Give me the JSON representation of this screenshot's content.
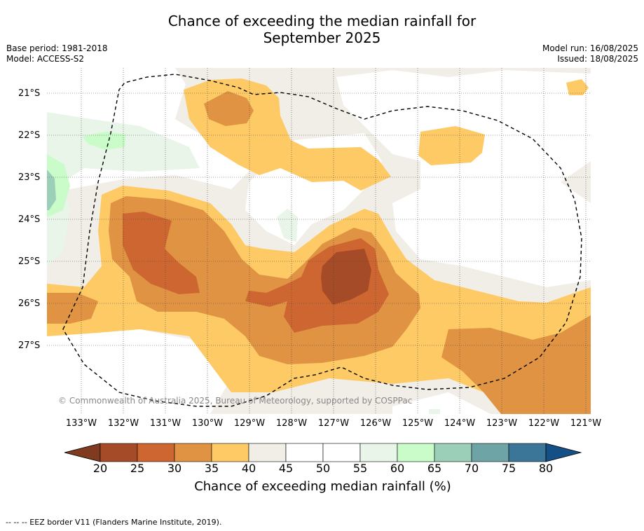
{
  "title_line1": "Chance of exceeding the median rainfall for",
  "title_line2": "September 2025",
  "meta_left": {
    "base_period": "Base period: 1981-2018",
    "model": "Model: ACCESS-S2"
  },
  "meta_right": {
    "model_run": "Model run: 16/08/2025",
    "issued": "Issued: 18/08/2025"
  },
  "lat_labels": [
    "21°S",
    "22°S",
    "23°S",
    "24°S",
    "25°S",
    "26°S",
    "27°S"
  ],
  "lon_labels": [
    "133°W",
    "132°W",
    "131°W",
    "130°W",
    "129°W",
    "128°W",
    "127°W",
    "126°W",
    "125°W",
    "124°W",
    "123°W",
    "122°W",
    "121°W"
  ],
  "copyright": "© Commonwealth of Australia 2025, Bureau of Meteorology, supported by COSPPac",
  "colorbar": {
    "ticks": [
      "20",
      "25",
      "30",
      "35",
      "40",
      "45",
      "50",
      "55",
      "60",
      "65",
      "70",
      "75",
      "80"
    ],
    "title": "Chance of exceeding median rainfall (%)",
    "colors": [
      "#a64b28",
      "#cd6630",
      "#e09342",
      "#fdca65",
      "#f1ede7",
      "#ffffff",
      "#ffffff",
      "#e8f5e8",
      "#c9fcc9",
      "#9ccfb8",
      "#6fa4a6",
      "#3b7699"
    ],
    "under_color": "#7f3a1f",
    "over_color": "#144f86"
  },
  "footer": "--  --  -- EEZ border V11 (Flanders Marine Institute, 2019)."
}
